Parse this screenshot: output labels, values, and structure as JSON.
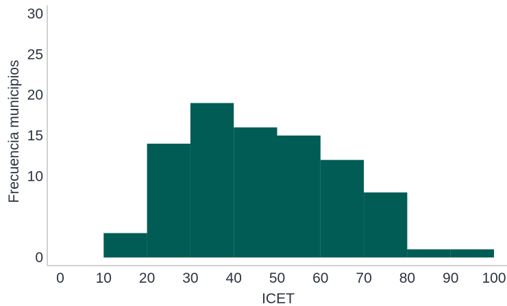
{
  "chart_data": {
    "type": "bar",
    "subtype": "histogram",
    "xlabel": "ICET",
    "ylabel": "Frecuencia municipios",
    "bin_edges": [
      10,
      20,
      30,
      40,
      50,
      60,
      70,
      80,
      90,
      100
    ],
    "values": [
      3,
      14,
      19,
      16,
      15,
      12,
      8,
      1,
      1
    ],
    "x_ticks": [
      "0",
      "10",
      "20",
      "30",
      "40",
      "50",
      "60",
      "70",
      "80",
      "90",
      "100"
    ],
    "y_ticks": [
      "0",
      "10",
      "15",
      "20",
      "25",
      "30"
    ],
    "xlim": [
      -3,
      103
    ],
    "ylim": [
      -1,
      31
    ],
    "grid": false,
    "bar_color": "#005c55",
    "axis_color": "#d0d0d0"
  }
}
